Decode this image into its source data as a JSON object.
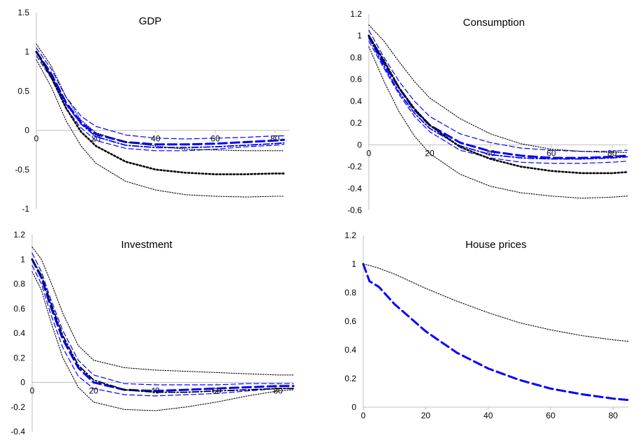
{
  "chart_data": [
    {
      "type": "line",
      "title": "GDP",
      "xlim": [
        0,
        85
      ],
      "ylim": [
        -1,
        1.5
      ],
      "xticks": [
        0,
        20,
        40,
        60,
        80
      ],
      "yticks": [
        -1,
        -0.5,
        0,
        0.5,
        1,
        1.5
      ],
      "xtick_labels": [
        "0",
        "20",
        "40",
        "60",
        "80"
      ],
      "ytick_labels": [
        "-1",
        "-0.5",
        "0",
        "0.5",
        "1",
        "1.5"
      ],
      "x": [
        0,
        5,
        10,
        15,
        20,
        30,
        40,
        50,
        60,
        70,
        80,
        83
      ],
      "series": [
        {
          "style": "dash-bold",
          "color": "#0000ff",
          "values": [
            1.0,
            0.72,
            0.35,
            0.1,
            -0.05,
            -0.15,
            -0.18,
            -0.18,
            -0.17,
            -0.15,
            -0.13,
            -0.12
          ]
        },
        {
          "style": "dash",
          "color": "#0000ff",
          "values": [
            1.05,
            0.78,
            0.42,
            0.18,
            0.05,
            -0.06,
            -0.1,
            -0.11,
            -0.1,
            -0.09,
            -0.07,
            -0.07
          ]
        },
        {
          "style": "dash",
          "color": "#0000ff",
          "values": [
            0.95,
            0.66,
            0.28,
            0.03,
            -0.13,
            -0.23,
            -0.26,
            -0.26,
            -0.24,
            -0.21,
            -0.19,
            -0.18
          ]
        },
        {
          "style": "dash-dot",
          "color": "#0000ff",
          "values": [
            1.0,
            0.7,
            0.33,
            0.08,
            -0.08,
            -0.19,
            -0.22,
            -0.22,
            -0.21,
            -0.19,
            -0.17,
            -0.16
          ]
        },
        {
          "style": "dot-bold",
          "color": "#000000",
          "values": [
            1.0,
            0.68,
            0.28,
            -0.02,
            -0.2,
            -0.4,
            -0.5,
            -0.54,
            -0.56,
            -0.56,
            -0.55,
            -0.55
          ]
        },
        {
          "style": "dot",
          "color": "#000000",
          "values": [
            1.1,
            0.82,
            0.42,
            0.13,
            -0.03,
            -0.15,
            -0.2,
            -0.24,
            -0.25,
            -0.26,
            -0.26,
            -0.26
          ]
        },
        {
          "style": "dot",
          "color": "#000000",
          "values": [
            0.9,
            0.55,
            0.12,
            -0.2,
            -0.42,
            -0.65,
            -0.76,
            -0.82,
            -0.84,
            -0.85,
            -0.84,
            -0.84
          ]
        }
      ]
    },
    {
      "type": "line",
      "title": "Consumption",
      "xlim": [
        0,
        85
      ],
      "ylim": [
        -0.6,
        1.2
      ],
      "xticks": [
        0,
        20,
        40,
        60,
        80
      ],
      "yticks": [
        -0.6,
        -0.4,
        -0.2,
        0,
        0.2,
        0.4,
        0.6,
        0.8,
        1,
        1.2
      ],
      "xtick_labels": [
        "0",
        "20",
        "40",
        "60",
        "80"
      ],
      "ytick_labels": [
        "-0.6",
        "-0.4",
        "-0.2",
        "0",
        "0.2",
        "0.4",
        "0.6",
        "0.8",
        "1",
        "1.2"
      ],
      "x": [
        0,
        5,
        10,
        15,
        20,
        30,
        40,
        50,
        60,
        70,
        80,
        85
      ],
      "series": [
        {
          "style": "dash-bold",
          "color": "#0000ff",
          "values": [
            1.0,
            0.75,
            0.52,
            0.32,
            0.18,
            0.02,
            -0.06,
            -0.1,
            -0.12,
            -0.12,
            -0.11,
            -0.1
          ]
        },
        {
          "style": "dash",
          "color": "#0000ff",
          "values": [
            1.05,
            0.8,
            0.58,
            0.4,
            0.26,
            0.1,
            0.02,
            -0.03,
            -0.05,
            -0.06,
            -0.06,
            -0.05
          ]
        },
        {
          "style": "dash",
          "color": "#0000ff",
          "values": [
            0.95,
            0.7,
            0.46,
            0.26,
            0.12,
            -0.05,
            -0.12,
            -0.16,
            -0.17,
            -0.17,
            -0.16,
            -0.15
          ]
        },
        {
          "style": "dash-dot",
          "color": "#0000ff",
          "values": [
            0.98,
            0.72,
            0.48,
            0.29,
            0.15,
            -0.01,
            -0.09,
            -0.12,
            -0.13,
            -0.13,
            -0.12,
            -0.11
          ]
        },
        {
          "style": "dot-bold",
          "color": "#000000",
          "values": [
            1.0,
            0.77,
            0.52,
            0.33,
            0.18,
            -0.02,
            -0.13,
            -0.2,
            -0.24,
            -0.26,
            -0.26,
            -0.25
          ]
        },
        {
          "style": "dot",
          "color": "#000000",
          "values": [
            1.1,
            0.95,
            0.76,
            0.58,
            0.43,
            0.24,
            0.1,
            0.01,
            -0.04,
            -0.06,
            -0.07,
            -0.07
          ]
        },
        {
          "style": "dot",
          "color": "#000000",
          "values": [
            0.9,
            0.58,
            0.3,
            0.08,
            -0.08,
            -0.27,
            -0.38,
            -0.44,
            -0.47,
            -0.49,
            -0.48,
            -0.47
          ]
        }
      ]
    },
    {
      "type": "line",
      "title": "Investment",
      "xlim": [
        0,
        85
      ],
      "ylim": [
        -0.4,
        1.2
      ],
      "xticks": [
        0,
        20,
        40,
        60,
        80
      ],
      "yticks": [
        -0.4,
        -0.2,
        0,
        0.2,
        0.4,
        0.6,
        0.8,
        1,
        1.2
      ],
      "xtick_labels": [
        "0",
        "20",
        "40",
        "60",
        "80"
      ],
      "ytick_labels": [
        "-0.4",
        "-0.2",
        "0",
        "0.2",
        "0.4",
        "0.6",
        "0.8",
        "1",
        "1.2"
      ],
      "x": [
        0,
        3,
        6,
        10,
        15,
        20,
        30,
        40,
        50,
        60,
        70,
        80,
        85
      ],
      "series": [
        {
          "style": "dash-bold",
          "color": "#0000ff",
          "values": [
            1.0,
            0.85,
            0.62,
            0.35,
            0.12,
            0.0,
            -0.06,
            -0.07,
            -0.06,
            -0.05,
            -0.04,
            -0.03,
            -0.03
          ]
        },
        {
          "style": "dash",
          "color": "#0000ff",
          "values": [
            1.05,
            0.9,
            0.68,
            0.42,
            0.18,
            0.06,
            -0.01,
            -0.02,
            -0.02,
            -0.02,
            -0.01,
            -0.01,
            -0.01
          ]
        },
        {
          "style": "dash",
          "color": "#0000ff",
          "values": [
            0.95,
            0.8,
            0.56,
            0.28,
            0.05,
            -0.05,
            -0.1,
            -0.11,
            -0.1,
            -0.09,
            -0.07,
            -0.05,
            -0.05
          ]
        },
        {
          "style": "dash-dot",
          "color": "#000000",
          "values": [
            1.0,
            0.87,
            0.65,
            0.38,
            0.14,
            0.02,
            -0.06,
            -0.08,
            -0.08,
            -0.07,
            -0.06,
            -0.05,
            -0.05
          ]
        },
        {
          "style": "dot",
          "color": "#000000",
          "values": [
            1.1,
            1.0,
            0.82,
            0.56,
            0.3,
            0.18,
            0.12,
            0.1,
            0.09,
            0.08,
            0.07,
            0.06,
            0.06
          ]
        },
        {
          "style": "dot",
          "color": "#000000",
          "values": [
            0.9,
            0.75,
            0.5,
            0.2,
            -0.04,
            -0.16,
            -0.22,
            -0.23,
            -0.2,
            -0.16,
            -0.11,
            -0.07,
            -0.06
          ]
        }
      ]
    },
    {
      "type": "line",
      "title": "House prices",
      "xlim": [
        0,
        85
      ],
      "ylim": [
        0,
        1.2
      ],
      "xticks": [
        0,
        20,
        40,
        60,
        80
      ],
      "yticks": [
        0,
        0.2,
        0.4,
        0.6,
        0.8,
        1,
        1.2
      ],
      "xtick_labels": [
        "0",
        "20",
        "40",
        "60",
        "80"
      ],
      "ytick_labels": [
        "0",
        "0.2",
        "0.4",
        "0.6",
        "0.8",
        "1",
        "1.2"
      ],
      "x": [
        0,
        2,
        5,
        10,
        20,
        30,
        40,
        50,
        60,
        70,
        80,
        85
      ],
      "series": [
        {
          "style": "dash-bold",
          "color": "#0000ff",
          "values": [
            1.0,
            0.88,
            0.84,
            0.72,
            0.53,
            0.38,
            0.27,
            0.19,
            0.13,
            0.09,
            0.06,
            0.05
          ]
        },
        {
          "style": "dot",
          "color": "#000000",
          "values": [
            1.0,
            0.99,
            0.97,
            0.93,
            0.83,
            0.74,
            0.66,
            0.59,
            0.54,
            0.5,
            0.47,
            0.46
          ]
        }
      ]
    }
  ]
}
